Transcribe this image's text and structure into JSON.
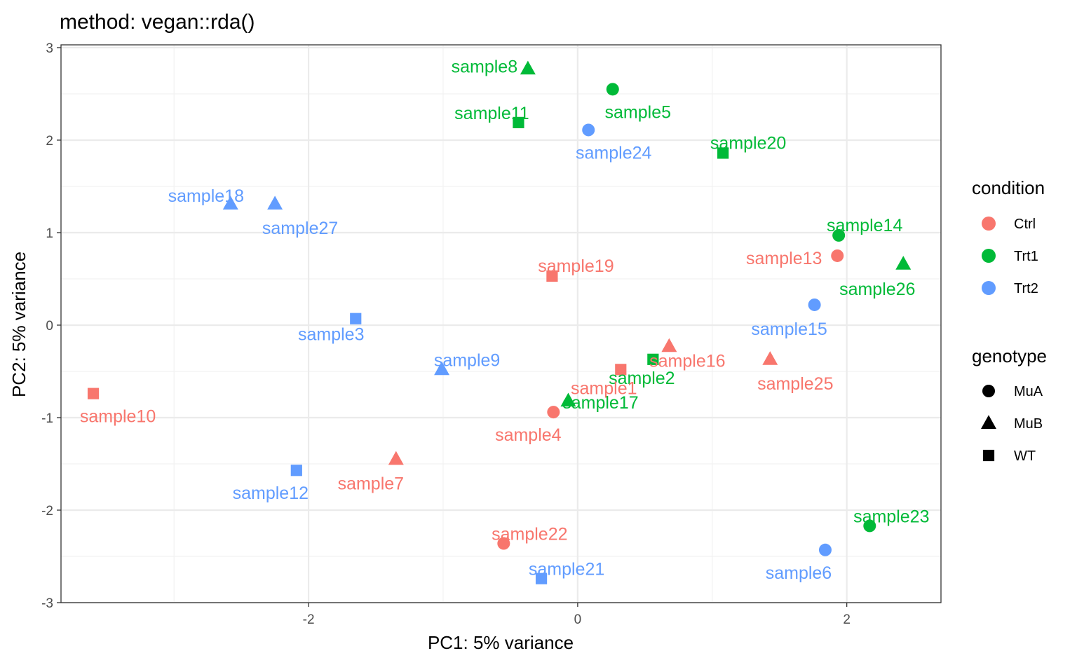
{
  "chart_data": {
    "type": "scatter",
    "title": "method: vegan::rda()",
    "xlabel": "PC1: 5% variance",
    "ylabel": "PC2: 5% variance",
    "xlim": [
      -3.84,
      2.7
    ],
    "ylim": [
      -3.0,
      3.03
    ],
    "x_ticks": [
      -2,
      0,
      2
    ],
    "x_tick_labels": [
      "-2",
      "0",
      "2"
    ],
    "y_ticks": [
      -3,
      -2,
      -1,
      0,
      1,
      2,
      3
    ],
    "y_tick_labels": [
      "-3",
      "-2",
      "-1",
      "0",
      "1",
      "2",
      "3"
    ],
    "grid": true,
    "legend_position": "right",
    "legends": [
      {
        "title": "condition",
        "entries": [
          {
            "label": "Ctrl",
            "color": "#F8766D"
          },
          {
            "label": "Trt1",
            "color": "#00BA38"
          },
          {
            "label": "Trt2",
            "color": "#619CFF"
          }
        ]
      },
      {
        "title": "genotype",
        "entries": [
          {
            "label": "MuA",
            "shape": "circle"
          },
          {
            "label": "MuB",
            "shape": "triangle"
          },
          {
            "label": "WT",
            "shape": "square"
          }
        ]
      }
    ],
    "colors": {
      "Ctrl": "#F8766D",
      "Trt1": "#00BA38",
      "Trt2": "#619CFF"
    },
    "points": [
      {
        "label": "sample8",
        "x": -0.37,
        "y": 2.77,
        "condition": "Trt1",
        "genotype": "MuB"
      },
      {
        "label": "sample5",
        "x": 0.26,
        "y": 2.55,
        "condition": "Trt1",
        "genotype": "MuA"
      },
      {
        "label": "sample11",
        "x": -0.44,
        "y": 2.19,
        "condition": "Trt1",
        "genotype": "WT"
      },
      {
        "label": "sample24",
        "x": 0.08,
        "y": 2.11,
        "condition": "Trt2",
        "genotype": "MuA"
      },
      {
        "label": "sample20",
        "x": 1.08,
        "y": 1.86,
        "condition": "Trt1",
        "genotype": "WT"
      },
      {
        "label": "sample18",
        "x": -2.58,
        "y": 1.31,
        "condition": "Trt2",
        "genotype": "MuB"
      },
      {
        "label": "sample27",
        "x": -2.25,
        "y": 1.31,
        "condition": "Trt2",
        "genotype": "MuB"
      },
      {
        "label": "sample14",
        "x": 1.94,
        "y": 0.97,
        "condition": "Trt1",
        "genotype": "MuA"
      },
      {
        "label": "sample13",
        "x": 1.93,
        "y": 0.75,
        "condition": "Ctrl",
        "genotype": "MuA"
      },
      {
        "label": "sample26",
        "x": 2.42,
        "y": 0.66,
        "condition": "Trt1",
        "genotype": "MuB"
      },
      {
        "label": "sample19",
        "x": -0.19,
        "y": 0.53,
        "condition": "Ctrl",
        "genotype": "WT"
      },
      {
        "label": "sample15",
        "x": 1.76,
        "y": 0.22,
        "condition": "Trt2",
        "genotype": "MuA"
      },
      {
        "label": "sample3",
        "x": -1.65,
        "y": 0.07,
        "condition": "Trt2",
        "genotype": "WT"
      },
      {
        "label": "sample16",
        "x": 0.68,
        "y": -0.23,
        "condition": "Ctrl",
        "genotype": "MuB"
      },
      {
        "label": "sample2",
        "x": 0.56,
        "y": -0.37,
        "condition": "Trt1",
        "genotype": "WT"
      },
      {
        "label": "sample25",
        "x": 1.43,
        "y": -0.37,
        "condition": "Ctrl",
        "genotype": "MuB"
      },
      {
        "label": "sample9",
        "x": -1.01,
        "y": -0.48,
        "condition": "Trt2",
        "genotype": "MuB"
      },
      {
        "label": "sample1",
        "x": 0.32,
        "y": -0.48,
        "condition": "Ctrl",
        "genotype": "WT"
      },
      {
        "label": "sample17",
        "x": -0.07,
        "y": -0.82,
        "condition": "Trt1",
        "genotype": "MuB"
      },
      {
        "label": "sample10",
        "x": -3.6,
        "y": -0.74,
        "condition": "Ctrl",
        "genotype": "WT"
      },
      {
        "label": "sample4",
        "x": -0.18,
        "y": -0.94,
        "condition": "Ctrl",
        "genotype": "MuA"
      },
      {
        "label": "sample7",
        "x": -1.35,
        "y": -1.45,
        "condition": "Ctrl",
        "genotype": "MuB"
      },
      {
        "label": "sample12",
        "x": -2.09,
        "y": -1.57,
        "condition": "Trt2",
        "genotype": "WT"
      },
      {
        "label": "sample23",
        "x": 2.17,
        "y": -2.17,
        "condition": "Trt1",
        "genotype": "MuA"
      },
      {
        "label": "sample22",
        "x": -0.55,
        "y": -2.36,
        "condition": "Ctrl",
        "genotype": "MuA"
      },
      {
        "label": "sample6",
        "x": 1.84,
        "y": -2.43,
        "condition": "Trt2",
        "genotype": "MuA"
      },
      {
        "label": "sample21",
        "x": -0.27,
        "y": -2.74,
        "condition": "Trt2",
        "genotype": "WT"
      }
    ]
  }
}
